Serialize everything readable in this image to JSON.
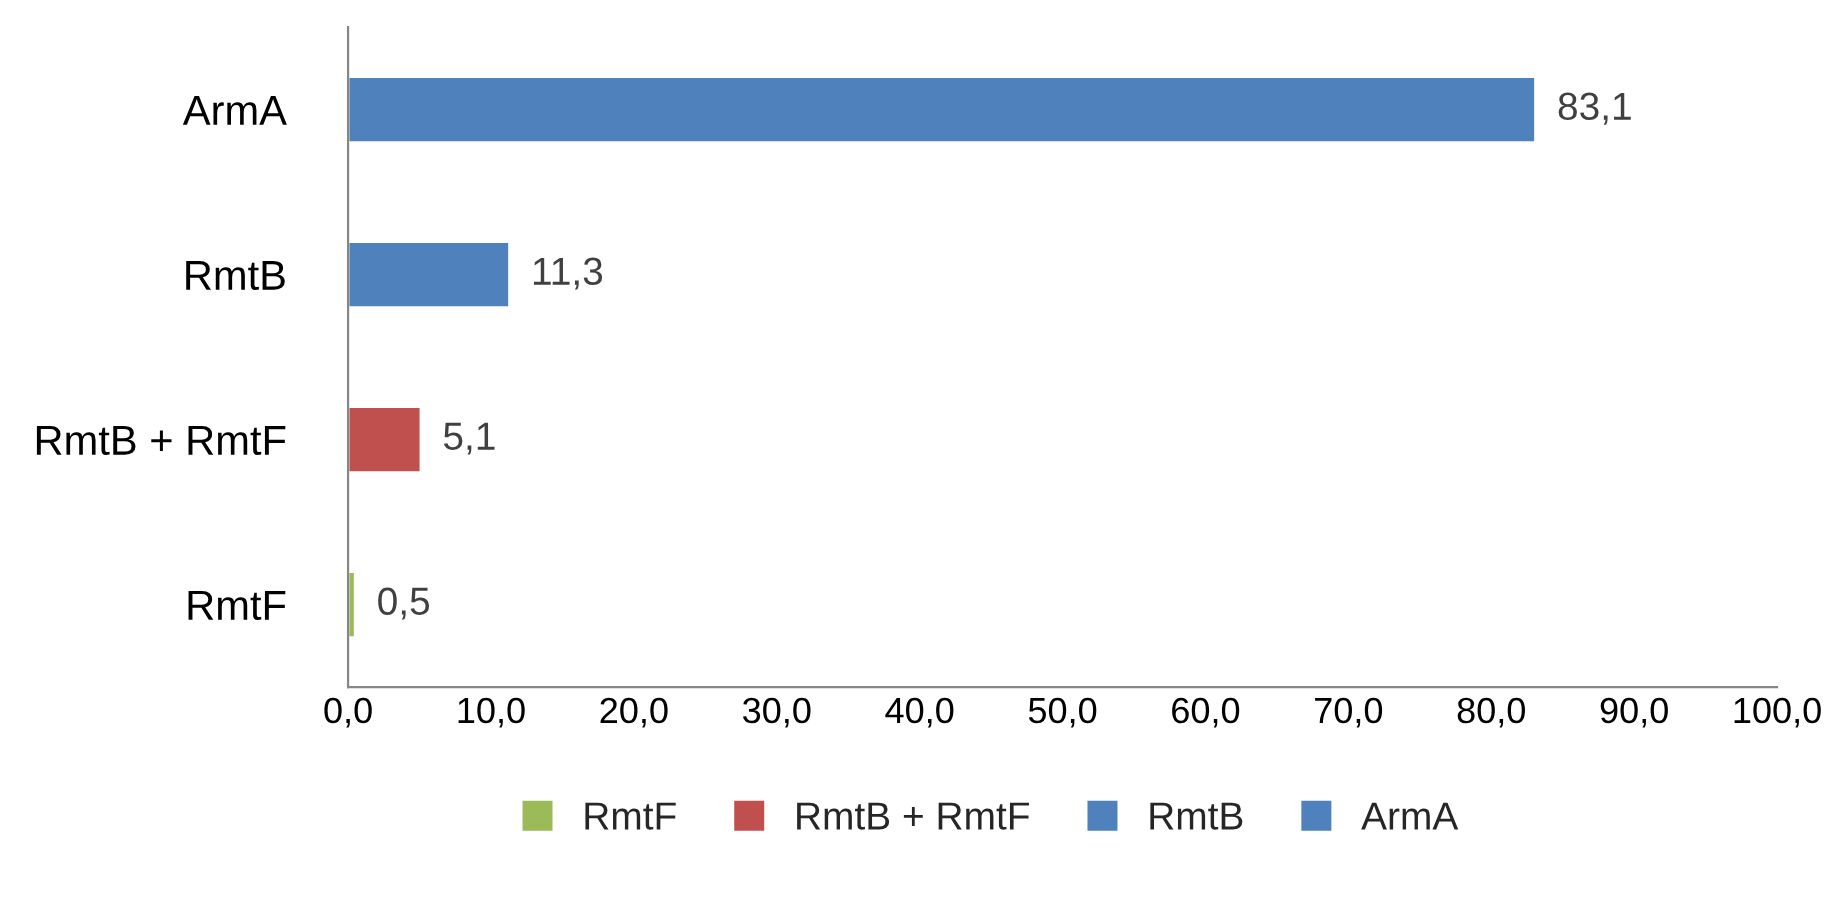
{
  "chart_data": {
    "type": "bar",
    "orientation": "horizontal",
    "stacked": true,
    "categories": [
      "ArmA",
      "RmtB",
      "RmtB + RmtF",
      "RmtF"
    ],
    "series": [
      {
        "name": "RmtF",
        "color": "#9bbb59",
        "values": [
          null,
          null,
          null,
          0.5
        ],
        "value_labels": [
          null,
          null,
          null,
          "0,5"
        ]
      },
      {
        "name": "RmtB + RmtF",
        "color": "#c0504d",
        "values": [
          null,
          null,
          5.1,
          null
        ],
        "value_labels": [
          null,
          null,
          "5,1",
          null
        ]
      },
      {
        "name": "RmtB",
        "color": "#4f81bd",
        "values": [
          null,
          11.3,
          null,
          null
        ],
        "value_labels": [
          null,
          "11,3",
          null,
          null
        ]
      },
      {
        "name": "ArmA",
        "color": "#4f81bd",
        "values": [
          83.1,
          null,
          null,
          null
        ],
        "value_labels": [
          "83,1",
          null,
          null,
          null
        ]
      }
    ],
    "xlim": [
      0,
      100
    ],
    "xticks": [
      {
        "value": 0,
        "label": "0,0"
      },
      {
        "value": 10,
        "label": "10,0"
      },
      {
        "value": 20,
        "label": "20,0"
      },
      {
        "value": 30,
        "label": "30,0"
      },
      {
        "value": 40,
        "label": "40,0"
      },
      {
        "value": 50,
        "label": "50,0"
      },
      {
        "value": 60,
        "label": "60,0"
      },
      {
        "value": 70,
        "label": "70,0"
      },
      {
        "value": 80,
        "label": "80,0"
      },
      {
        "value": 90,
        "label": "90,0"
      },
      {
        "value": 100,
        "label": "100,0"
      }
    ],
    "grid": false,
    "legend": "bottom"
  }
}
